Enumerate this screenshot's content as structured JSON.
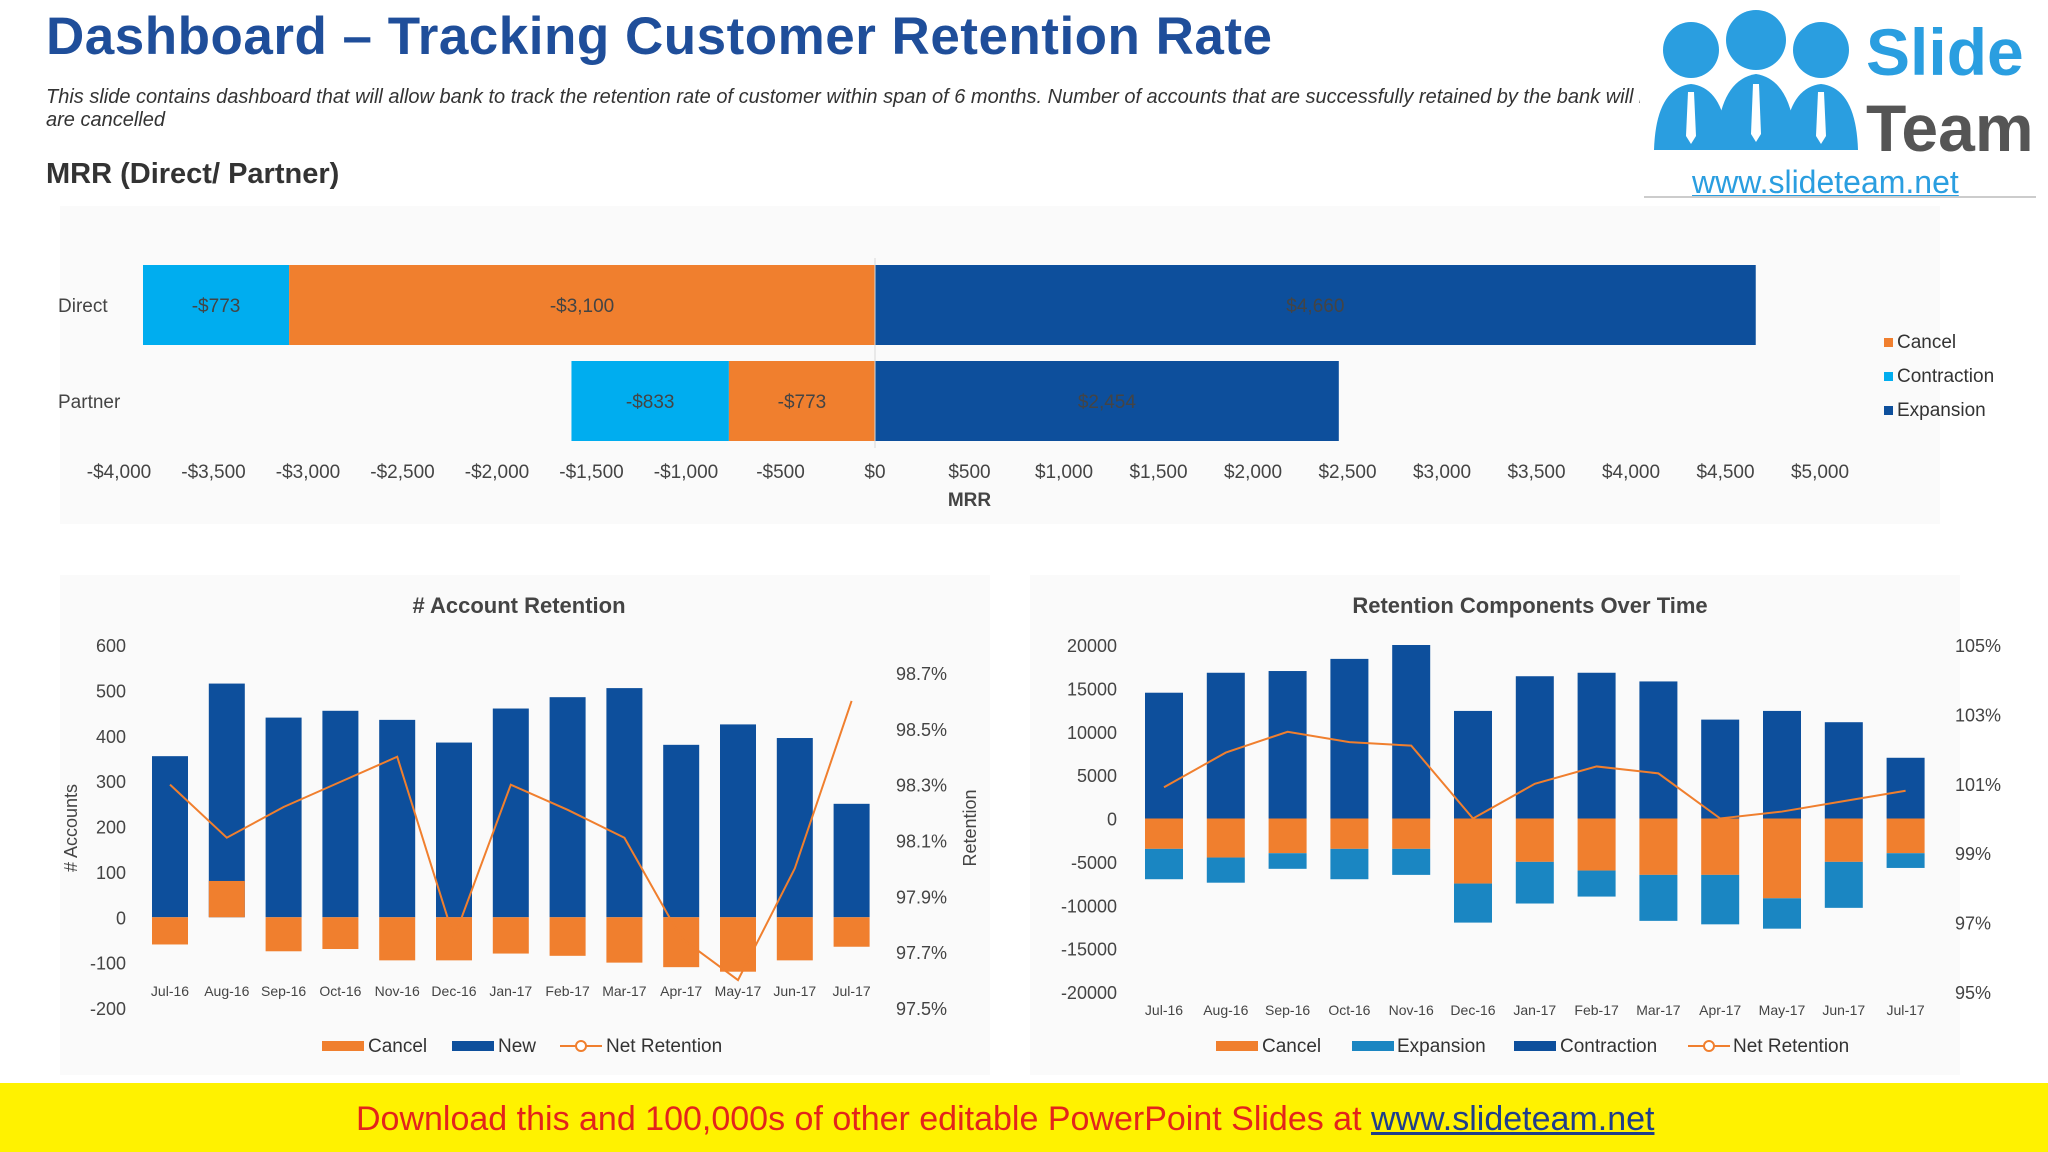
{
  "page": {
    "title": "Dashboard – Tracking Customer Retention Rate",
    "subtitle": "This slide contains dashboard that will allow bank to track the retention rate of customer within span of 6 months. Number of accounts that are successfully retained by the bank will help bank in tracking accounts that are cancelled",
    "section_title": "MRR (Direct/ Partner)"
  },
  "logo": {
    "line1": "Slide",
    "line2": "Team",
    "url": "www.slideteam.net"
  },
  "banner": {
    "text": "Download this and 100,000s of other editable PowerPoint Slides at ",
    "link": "www.slideteam.net"
  },
  "colors": {
    "cancel": "#f07f2e",
    "contraction_light": "#00adef",
    "expansion_dark": "#0d4f9c",
    "expansion_mid": "#1a86c2",
    "line": "#f07f2e"
  },
  "chart_data": [
    {
      "type": "bar",
      "orientation": "horizontal",
      "stacked": true,
      "title": "",
      "xlabel": "MRR",
      "categories": [
        "Direct",
        "Partner"
      ],
      "xlim": [
        -4000,
        5000
      ],
      "x_ticks": [
        "-$4,000",
        "-$3,500",
        "-$3,000",
        "-$2,500",
        "-$2,000",
        "-$1,500",
        "-$1,000",
        "-$500",
        "$0",
        "$500",
        "$1,000",
        "$1,500",
        "$2,000",
        "$2,500",
        "$3,000",
        "$3,500",
        "$4,000",
        "$4,500",
        "$5,000"
      ],
      "segments": [
        [
          {
            "series": "Contraction",
            "label": "-$773",
            "from": -3873,
            "to": -3100
          },
          {
            "series": "Cancel",
            "label": "-$3,100",
            "from": -3100,
            "to": 0
          },
          {
            "series": "Expansion",
            "label": "$4,660",
            "from": 0,
            "to": 4660
          }
        ],
        [
          {
            "series": "Contraction",
            "label": "-$833",
            "from": -1606,
            "to": -773
          },
          {
            "series": "Cancel",
            "label": "-$773",
            "from": -773,
            "to": 0
          },
          {
            "series": "Expansion",
            "label": "$2,454",
            "from": 0,
            "to": 2454
          }
        ]
      ],
      "legend": [
        "Cancel",
        "Contraction",
        "Expansion"
      ],
      "legend_position": "right"
    },
    {
      "type": "bar",
      "title": "# Account Retention",
      "ylabel": "# Accounts",
      "y2label": "Retention",
      "categories": [
        "Jul-16",
        "Aug-16",
        "Sep-16",
        "Oct-16",
        "Nov-16",
        "Dec-16",
        "Jan-17",
        "Feb-17",
        "Mar-17",
        "Apr-17",
        "May-17",
        "Jun-17",
        "Jul-17"
      ],
      "ylim": [
        -200,
        600
      ],
      "y_ticks": [
        "600",
        "500",
        "400",
        "300",
        "200",
        "100",
        "0",
        "-100",
        "-200"
      ],
      "y2lim": [
        97.5,
        98.8
      ],
      "y2_ticks": [
        "98.7%",
        "98.5%",
        "98.3%",
        "98.1%",
        "97.9%",
        "97.7%",
        "97.5%"
      ],
      "series": [
        {
          "name": "Cancel",
          "values": [
            -60,
            80,
            -75,
            -70,
            -95,
            -95,
            -80,
            -85,
            -100,
            -110,
            -120,
            -95,
            -65
          ]
        },
        {
          "name": "New",
          "values": [
            355,
            515,
            440,
            455,
            435,
            385,
            460,
            485,
            505,
            380,
            425,
            395,
            250
          ]
        },
        {
          "name": "Net Retention",
          "axis": "secondary",
          "values": [
            98.3,
            98.11,
            98.22,
            98.31,
            98.4,
            97.75,
            98.3,
            98.21,
            98.11,
            97.75,
            97.6,
            98.0,
            98.6
          ]
        }
      ],
      "legend": [
        "Cancel",
        "New",
        "Net Retention"
      ],
      "legend_position": "bottom"
    },
    {
      "type": "bar",
      "title": "Retention Components Over Time",
      "categories": [
        "Jul-16",
        "Aug-16",
        "Sep-16",
        "Oct-16",
        "Nov-16",
        "Dec-16",
        "Jan-17",
        "Feb-17",
        "Mar-17",
        "Apr-17",
        "May-17",
        "Jun-17",
        "Jul-17"
      ],
      "ylim": [
        -20000,
        20000
      ],
      "y_ticks": [
        "20000",
        "15000",
        "10000",
        "5000",
        "0",
        "-5000",
        "-10000",
        "-15000",
        "-20000"
      ],
      "y2lim": [
        95,
        105
      ],
      "y2_ticks": [
        "105%",
        "103%",
        "101%",
        "99%",
        "97%",
        "95%"
      ],
      "series": [
        {
          "name": "Cancel",
          "values": [
            -3500,
            -4500,
            -4000,
            -3500,
            -3500,
            -7500,
            -5000,
            -6000,
            -6500,
            -6500,
            -9200,
            -5000,
            -4000
          ]
        },
        {
          "name": "Expansion",
          "values": [
            -3500,
            -2900,
            -1800,
            -3500,
            -3000,
            -4500,
            -4800,
            -3000,
            -5300,
            -5700,
            -3500,
            -5300,
            -1700
          ]
        },
        {
          "name": "Contraction",
          "values": [
            14500,
            16800,
            17000,
            18400,
            20000,
            12400,
            16400,
            16800,
            15800,
            11400,
            12400,
            11100,
            7000
          ]
        },
        {
          "name": "Net Retention",
          "axis": "secondary",
          "values": [
            100.9,
            101.9,
            102.5,
            102.2,
            102.1,
            100.0,
            101.0,
            101.5,
            101.3,
            100.0,
            100.2,
            100.5,
            100.8
          ]
        }
      ],
      "legend": [
        "Cancel",
        "Expansion",
        "Contraction",
        "Net Retention"
      ],
      "legend_position": "bottom"
    }
  ]
}
